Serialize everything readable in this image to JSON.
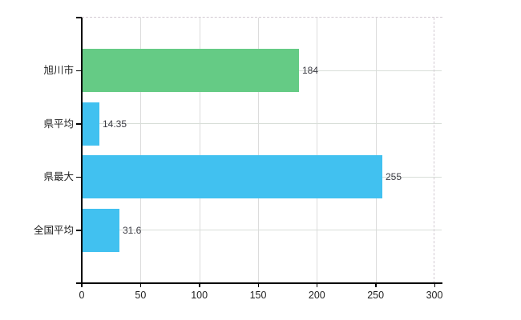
{
  "chart_data": {
    "type": "bar",
    "orientation": "horizontal",
    "title": "",
    "xlabel": "",
    "ylabel": "",
    "categories": [
      "旭川市",
      "県平均",
      "県最大",
      "全国平均"
    ],
    "values": [
      184,
      14.35,
      255,
      31.6
    ],
    "value_labels": [
      "184",
      "14.35",
      "255",
      "31.6"
    ],
    "bar_colors": [
      "#65cb85",
      "#41c1f0",
      "#41c1f0",
      "#41c1f0"
    ],
    "xlim": [
      0,
      300
    ],
    "x_ticks": [
      0,
      50,
      100,
      150,
      200,
      250,
      300
    ],
    "x_tick_labels": [
      "0",
      "50",
      "100",
      "150",
      "200",
      "250",
      "300"
    ],
    "grid": true,
    "legend": false
  },
  "colors": {
    "bar_green": "#65cb85",
    "bar_blue": "#41c1f0",
    "grid_vertical": "#dcdcdc",
    "grid_horizontal": "#d8ded8",
    "border_dashed": "#d2cad2",
    "axis": "#000000",
    "tick_text": "#1f1f1f",
    "value_text": "#3a3a42",
    "background": "#ffffff"
  }
}
